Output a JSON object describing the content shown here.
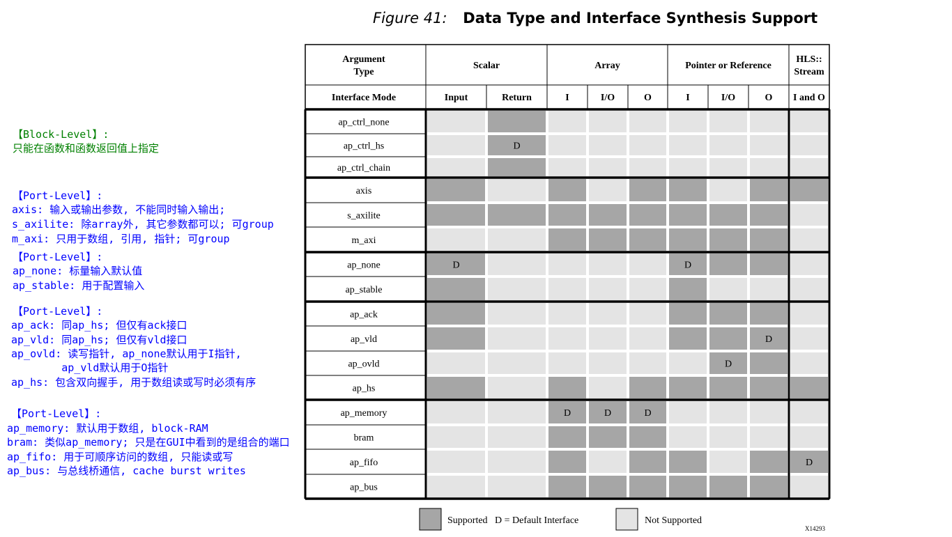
{
  "figure": {
    "number": "Figure 41:",
    "title": "Data Type and Interface Synthesis Support"
  },
  "colors": {
    "supported": "#a6a6a6",
    "not_supported": "#e4e4e4",
    "note_green": "#008000",
    "note_blue": "#0000ff"
  },
  "notes": [
    {
      "text": "【Block-Level】:",
      "color": "green"
    },
    {
      "text": "只能在函数和函数返回值上指定",
      "color": "green"
    },
    {
      "text": "【Port-Level】:",
      "color": "blue"
    },
    {
      "text": "axis: 输入或输出参数, 不能同时输入输出;",
      "color": "blue"
    },
    {
      "text": "s_axilite: 除array外, 其它参数都可以; 可group",
      "color": "blue"
    },
    {
      "text": "m_axi: 只用于数组, 引用, 指针; 可group",
      "color": "blue"
    },
    {
      "text": "【Port-Level】:",
      "color": "blue"
    },
    {
      "text": "ap_none: 标量输入默认值",
      "color": "blue"
    },
    {
      "text": "ap_stable: 用于配置输入",
      "color": "blue"
    },
    {
      "text": "【Port-Level】:",
      "color": "blue"
    },
    {
      "text": "ap_ack: 同ap_hs; 但仅有ack接口",
      "color": "blue"
    },
    {
      "text": "ap_vld: 同ap_hs; 但仅有vld接口",
      "color": "blue"
    },
    {
      "text": "ap_ovld: 读写指针, ap_none默认用于I指针,",
      "color": "blue"
    },
    {
      "text": "        ap_vld默认用于O指针",
      "color": "blue"
    },
    {
      "text": "ap_hs: 包含双向握手, 用于数组读或写时必须有序",
      "color": "blue"
    },
    {
      "text": "【Port-Level】:",
      "color": "blue"
    },
    {
      "text": "ap_memory: 默认用于数组, block-RAM",
      "color": "blue"
    },
    {
      "text": "bram: 类似ap_memory; 只是在GUI中看到的是组合的端口",
      "color": "blue"
    },
    {
      "text": "ap_fifo: 用于可顺序访问的数组, 只能读或写",
      "color": "blue"
    },
    {
      "text": "ap_bus: 与总线桥通信, cache burst writes",
      "color": "blue"
    }
  ],
  "table": {
    "corner_header": "Argument Type",
    "mode_header": "Interface Mode",
    "groups": [
      {
        "label": "Scalar",
        "span": 2
      },
      {
        "label": "Array",
        "span": 3
      },
      {
        "label": "Pointer or Reference",
        "span": 3
      },
      {
        "label": "HLS:: Stream",
        "span": 1
      }
    ],
    "subheaders": [
      "Input",
      "Return",
      "I",
      "I/O",
      "O",
      "I",
      "I/O",
      "O",
      "I and O"
    ],
    "rows": [
      {
        "mode": "ap_ctrl_none",
        "cells": [
          "N",
          "S",
          "N",
          "N",
          "N",
          "N",
          "N",
          "N",
          "N"
        ]
      },
      {
        "mode": "ap_ctrl_hs",
        "cells": [
          "N",
          "SD",
          "N",
          "N",
          "N",
          "N",
          "N",
          "N",
          "N"
        ]
      },
      {
        "mode": "ap_ctrl_chain",
        "cells": [
          "N",
          "S",
          "N",
          "N",
          "N",
          "N",
          "N",
          "N",
          "N"
        ]
      },
      {
        "mode": "axis",
        "cells": [
          "S",
          "N",
          "S",
          "N",
          "S",
          "S",
          "N",
          "S",
          "S"
        ]
      },
      {
        "mode": "s_axilite",
        "cells": [
          "S",
          "S",
          "S",
          "S",
          "S",
          "S",
          "S",
          "S",
          "N"
        ]
      },
      {
        "mode": "m_axi",
        "cells": [
          "N",
          "N",
          "S",
          "S",
          "S",
          "S",
          "S",
          "S",
          "N"
        ]
      },
      {
        "mode": "ap_none",
        "cells": [
          "SD",
          "N",
          "N",
          "N",
          "N",
          "SD",
          "S",
          "S",
          "N"
        ]
      },
      {
        "mode": "ap_stable",
        "cells": [
          "S",
          "N",
          "N",
          "N",
          "N",
          "S",
          "N",
          "N",
          "N"
        ]
      },
      {
        "mode": "ap_ack",
        "cells": [
          "S",
          "N",
          "N",
          "N",
          "N",
          "S",
          "S",
          "S",
          "N"
        ]
      },
      {
        "mode": "ap_vld",
        "cells": [
          "S",
          "N",
          "N",
          "N",
          "N",
          "S",
          "S",
          "SD",
          "N"
        ]
      },
      {
        "mode": "ap_ovld",
        "cells": [
          "N",
          "N",
          "N",
          "N",
          "N",
          "N",
          "SD",
          "S",
          "N"
        ]
      },
      {
        "mode": "ap_hs",
        "cells": [
          "S",
          "N",
          "S",
          "N",
          "S",
          "S",
          "S",
          "S",
          "S"
        ]
      },
      {
        "mode": "ap_memory",
        "cells": [
          "N",
          "N",
          "SD",
          "SD",
          "SD",
          "N",
          "N",
          "N",
          "N"
        ]
      },
      {
        "mode": "bram",
        "cells": [
          "N",
          "N",
          "S",
          "S",
          "S",
          "N",
          "N",
          "N",
          "N"
        ]
      },
      {
        "mode": "ap_fifo",
        "cells": [
          "N",
          "N",
          "S",
          "N",
          "S",
          "S",
          "N",
          "S",
          "SD"
        ]
      },
      {
        "mode": "ap_bus",
        "cells": [
          "N",
          "N",
          "S",
          "S",
          "S",
          "S",
          "S",
          "S",
          "N"
        ]
      }
    ],
    "default_mark": "D"
  },
  "legend": {
    "supported_label": "Supported   D = Default Interface",
    "not_supported_label": "Not Supported"
  },
  "figure_id": "X14293"
}
